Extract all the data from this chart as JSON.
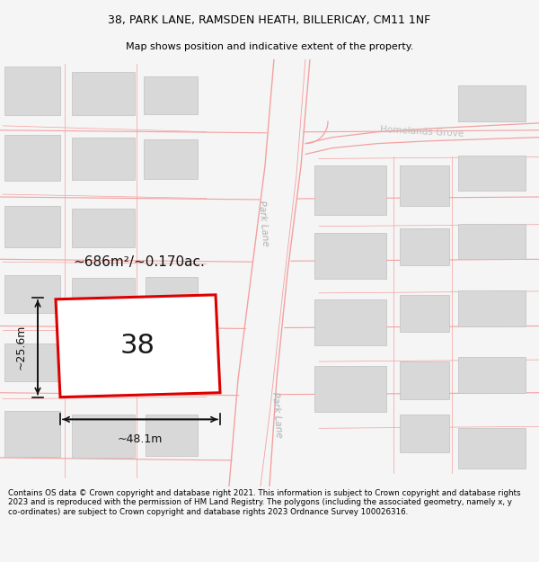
{
  "title_line1": "38, PARK LANE, RAMSDEN HEATH, BILLERICAY, CM11 1NF",
  "title_line2": "Map shows position and indicative extent of the property.",
  "footer_text": "Contains OS data © Crown copyright and database right 2021. This information is subject to Crown copyright and database rights 2023 and is reproduced with the permission of HM Land Registry. The polygons (including the associated geometry, namely x, y co-ordinates) are subject to Crown copyright and database rights 2023 Ordnance Survey 100026316.",
  "map_bg": "#ffffff",
  "road_color": "#f4a0a0",
  "building_color": "#d8d8d8",
  "building_edge": "#c0c0c0",
  "plot_edge": "#dd0000",
  "label_number": "38",
  "area_label": "~686m²/~0.170ac.",
  "dim_width": "~48.1m",
  "dim_height": "~25.6m",
  "street_label_pl1": "Park Lane",
  "street_label_pl2": "Park Lane",
  "street_label_hg": "Homelands Grove"
}
